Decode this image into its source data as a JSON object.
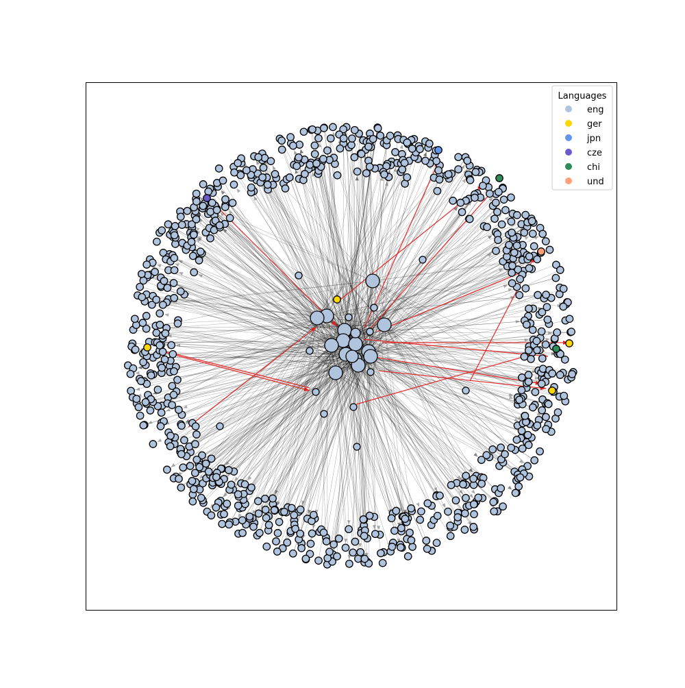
{
  "legend": {
    "title": "Languages",
    "placement": "top-right",
    "entries": [
      {
        "label": "eng",
        "color": "#b0c4de"
      },
      {
        "label": "ger",
        "color": "#ffd700"
      },
      {
        "label": "jpn",
        "color": "#6495ed"
      },
      {
        "label": "cze",
        "color": "#6a5acd"
      },
      {
        "label": "chi",
        "color": "#2e8b57"
      },
      {
        "label": "und",
        "color": "#ffa07a"
      }
    ]
  },
  "colors": {
    "edge_default": "#000000",
    "edge_highlight": "#e02020",
    "node_outline": "#000000",
    "frame": "#000000"
  }
}
